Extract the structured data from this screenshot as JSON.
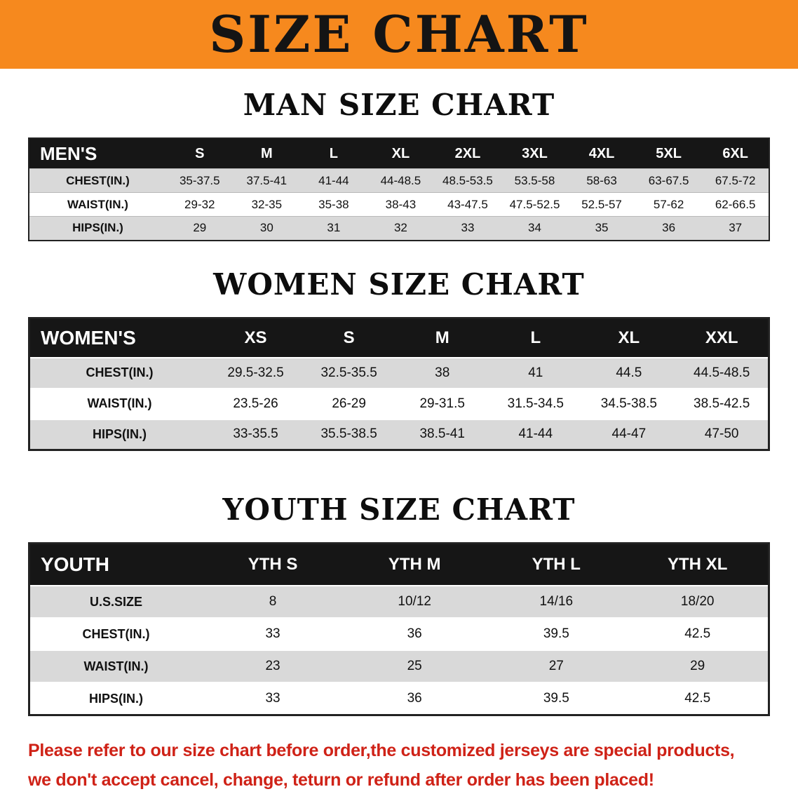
{
  "banner": {
    "title": "SIZE CHART",
    "background": "#f6891e"
  },
  "sections": {
    "men": {
      "heading": "MAN SIZE CHART",
      "table": {
        "header": [
          "MEN'S",
          "S",
          "M",
          "L",
          "XL",
          "2XL",
          "3XL",
          "4XL",
          "5XL",
          "6XL"
        ],
        "rows": [
          {
            "label": "CHEST(IN.)",
            "values": [
              "35-37.5",
              "37.5-41",
              "41-44",
              "44-48.5",
              "48.5-53.5",
              "53.5-58",
              "58-63",
              "63-67.5",
              "67.5-72"
            ]
          },
          {
            "label": "WAIST(IN.)",
            "values": [
              "29-32",
              "32-35",
              "35-38",
              "38-43",
              "43-47.5",
              "47.5-52.5",
              "52.5-57",
              "57-62",
              "62-66.5"
            ]
          },
          {
            "label": "HIPS(IN.)",
            "values": [
              "29",
              "30",
              "31",
              "32",
              "33",
              "34",
              "35",
              "36",
              "37"
            ]
          }
        ]
      }
    },
    "women": {
      "heading": "WOMEN SIZE CHART",
      "table": {
        "header": [
          "WOMEN'S",
          "XS",
          "S",
          "M",
          "L",
          "XL",
          "XXL"
        ],
        "rows": [
          {
            "label": "CHEST(IN.)",
            "values": [
              "29.5-32.5",
              "32.5-35.5",
              "38",
              "41",
              "44.5",
              "44.5-48.5"
            ]
          },
          {
            "label": "WAIST(IN.)",
            "values": [
              "23.5-26",
              "26-29",
              "29-31.5",
              "31.5-34.5",
              "34.5-38.5",
              "38.5-42.5"
            ]
          },
          {
            "label": "HIPS(IN.)",
            "values": [
              "33-35.5",
              "35.5-38.5",
              "38.5-41",
              "41-44",
              "44-47",
              "47-50"
            ]
          }
        ]
      }
    },
    "youth": {
      "heading": "YOUTH SIZE CHART",
      "table": {
        "header": [
          "YOUTH",
          "YTH S",
          "YTH M",
          "YTH L",
          "YTH XL"
        ],
        "rows": [
          {
            "label": "U.S.SIZE",
            "values": [
              "8",
              "10/12",
              "14/16",
              "18/20"
            ]
          },
          {
            "label": "CHEST(IN.)",
            "values": [
              "33",
              "36",
              "39.5",
              "42.5"
            ]
          },
          {
            "label": "WAIST(IN.)",
            "values": [
              "23",
              "25",
              "27",
              "29"
            ]
          },
          {
            "label": "HIPS(IN.)",
            "values": [
              "33",
              "36",
              "39.5",
              "42.5"
            ]
          }
        ]
      }
    }
  },
  "disclaimer": {
    "line1": "Please refer to our size chart before order,the customized jerseys are special products,",
    "line2": "we don't accept cancel, change, teturn or refund after order has been placed!",
    "color": "#cf2217"
  }
}
